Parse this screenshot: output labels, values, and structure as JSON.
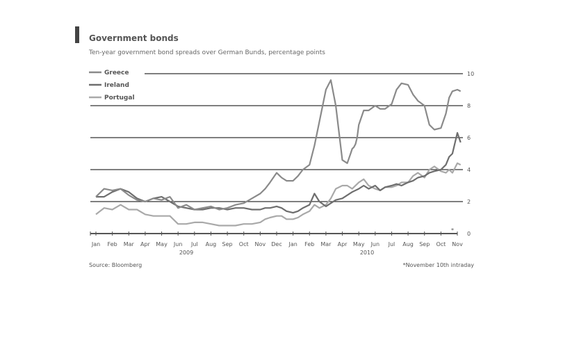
{
  "chart_data": {
    "type": "line",
    "title": "Government bonds",
    "subtitle": "Ten-year government bond spreads over German Bunds, percentage points",
    "source": "Source: Bloomberg",
    "footnote": "*November 10th intraday",
    "y_axis_side": "right",
    "ylim": [
      0,
      10
    ],
    "y_ticks": [
      0,
      2,
      4,
      6,
      8,
      10
    ],
    "grid": "horizontal",
    "legend_placement": "top-left",
    "x_tick_labels": [
      "Jan",
      "Feb",
      "Mar",
      "Apr",
      "May",
      "Jun",
      "Jul",
      "Aug",
      "Sep",
      "Oct",
      "Nov",
      "Dec",
      "Jan",
      "Feb",
      "Mar",
      "Apr",
      "May",
      "Jun",
      "Jul",
      "Aug",
      "Sep",
      "Oct",
      "Nov"
    ],
    "year_labels": [
      {
        "label": "2009",
        "month_index": 5.5
      },
      {
        "label": "2010",
        "month_index": 16.5
      }
    ],
    "end_marker": "*",
    "colors": {
      "greece": "#8a8a8a",
      "ireland": "#6e6e6e",
      "portugal": "#a9a9a9",
      "grid": "#333333",
      "axis": "#555555"
    },
    "series": [
      {
        "name": "Greece",
        "x": [
          0,
          0.5,
          1,
          1.5,
          2,
          2.5,
          3,
          3.5,
          4,
          4.5,
          5,
          5.5,
          6,
          6.5,
          7,
          7.5,
          8,
          8.5,
          9,
          9.5,
          10,
          10.3,
          10.6,
          11,
          11.3,
          11.6,
          12,
          12.3,
          12.6,
          13,
          13.3,
          13.6,
          14,
          14.3,
          14.6,
          15,
          15.3,
          15.5,
          15.6,
          15.7,
          15.8,
          15.9,
          16,
          16.3,
          16.6,
          17,
          17.3,
          17.6,
          18,
          18.3,
          18.6,
          19,
          19.3,
          19.6,
          20,
          20.3,
          20.6,
          21,
          21.3,
          21.5,
          21.7,
          22,
          22.2
        ],
        "values": [
          2.3,
          2.8,
          2.7,
          2.8,
          2.4,
          2.1,
          2.0,
          2.2,
          2.1,
          2.3,
          1.6,
          1.8,
          1.5,
          1.6,
          1.7,
          1.5,
          1.6,
          1.8,
          1.9,
          2.2,
          2.5,
          2.8,
          3.2,
          3.8,
          3.5,
          3.3,
          3.3,
          3.6,
          4.0,
          4.3,
          5.5,
          7.0,
          9.0,
          9.6,
          8.0,
          4.6,
          4.4,
          5.0,
          5.3,
          5.4,
          5.6,
          6.0,
          6.8,
          7.7,
          7.7,
          8.0,
          7.8,
          7.8,
          8.1,
          9.0,
          9.4,
          9.3,
          8.7,
          8.3,
          8.0,
          6.8,
          6.5,
          6.6,
          7.5,
          8.5,
          8.9,
          9.0,
          8.9
        ]
      },
      {
        "name": "Ireland",
        "x": [
          0,
          0.5,
          1,
          1.5,
          2,
          2.5,
          3,
          3.5,
          4,
          4.5,
          5,
          5.5,
          6,
          6.5,
          7,
          7.5,
          8,
          8.5,
          9,
          9.5,
          10,
          10.3,
          10.6,
          11,
          11.3,
          11.6,
          12,
          12.3,
          12.6,
          13,
          13.3,
          13.6,
          14,
          14.3,
          14.6,
          15,
          15.3,
          15.6,
          16,
          16.3,
          16.6,
          17,
          17.3,
          17.6,
          18,
          18.3,
          18.6,
          19,
          19.3,
          19.6,
          20,
          20.3,
          20.6,
          21,
          21.3,
          21.5,
          21.7,
          22,
          22.2
        ],
        "values": [
          2.3,
          2.3,
          2.6,
          2.8,
          2.6,
          2.2,
          2.0,
          2.2,
          2.3,
          2.0,
          1.7,
          1.6,
          1.5,
          1.5,
          1.6,
          1.6,
          1.5,
          1.6,
          1.6,
          1.5,
          1.5,
          1.6,
          1.6,
          1.7,
          1.6,
          1.4,
          1.3,
          1.4,
          1.6,
          1.8,
          2.5,
          2.0,
          1.7,
          1.9,
          2.1,
          2.2,
          2.4,
          2.6,
          2.8,
          3.0,
          2.8,
          3.0,
          2.7,
          2.9,
          3.0,
          3.1,
          3.0,
          3.2,
          3.3,
          3.5,
          3.6,
          3.8,
          3.9,
          4.0,
          4.3,
          4.8,
          5.0,
          6.3,
          5.7
        ]
      },
      {
        "name": "Portugal",
        "x": [
          0,
          0.5,
          1,
          1.5,
          2,
          2.5,
          3,
          3.5,
          4,
          4.5,
          5,
          5.5,
          6,
          6.5,
          7,
          7.5,
          8,
          8.5,
          9,
          9.5,
          10,
          10.3,
          10.6,
          11,
          11.3,
          11.6,
          12,
          12.3,
          12.6,
          13,
          13.3,
          13.6,
          14,
          14.3,
          14.6,
          15,
          15.3,
          15.6,
          16,
          16.3,
          16.6,
          17,
          17.3,
          17.6,
          18,
          18.3,
          18.6,
          19,
          19.3,
          19.6,
          20,
          20.3,
          20.6,
          21,
          21.3,
          21.5,
          21.7,
          22,
          22.2
        ],
        "values": [
          1.2,
          1.6,
          1.5,
          1.8,
          1.5,
          1.5,
          1.2,
          1.1,
          1.1,
          1.1,
          0.6,
          0.6,
          0.7,
          0.7,
          0.6,
          0.5,
          0.5,
          0.5,
          0.6,
          0.6,
          0.7,
          0.9,
          1.0,
          1.1,
          1.1,
          0.9,
          0.9,
          1.0,
          1.2,
          1.4,
          1.8,
          1.6,
          1.8,
          2.2,
          2.8,
          3.0,
          3.0,
          2.8,
          3.2,
          3.4,
          3.0,
          2.8,
          2.7,
          2.9,
          2.9,
          3.0,
          3.2,
          3.2,
          3.6,
          3.8,
          3.5,
          4.0,
          4.2,
          3.9,
          3.8,
          4.0,
          3.8,
          4.4,
          4.3
        ]
      }
    ]
  }
}
